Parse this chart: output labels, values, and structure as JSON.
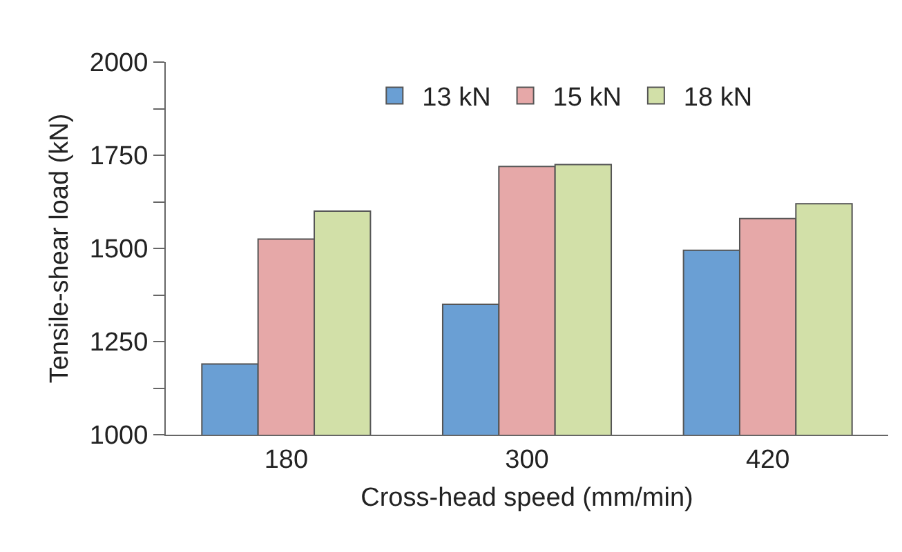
{
  "chart_data": {
    "type": "bar",
    "xlabel": "Cross-head speed (mm/min)",
    "ylabel": "Tensile-shear load (kN)",
    "categories": [
      "180",
      "300",
      "420"
    ],
    "series": [
      {
        "name": "13 kN",
        "color": "#6a9fd4",
        "values": [
          1190,
          1350,
          1495
        ]
      },
      {
        "name": "15 kN",
        "color": "#e6a8a8",
        "values": [
          1525,
          1720,
          1580
        ]
      },
      {
        "name": "18 kN",
        "color": "#d2e0a8",
        "values": [
          1600,
          1725,
          1620
        ]
      }
    ],
    "ylim": [
      1000,
      2000
    ],
    "yticks": [
      1000,
      {
        "value": 1125,
        "label": null
      },
      1250,
      {
        "value": 1375,
        "label": null
      },
      1500,
      {
        "value": 1625,
        "label": null
      },
      1750,
      {
        "value": 1875,
        "label": null
      },
      2000
    ],
    "grid": false,
    "legend": "top"
  }
}
